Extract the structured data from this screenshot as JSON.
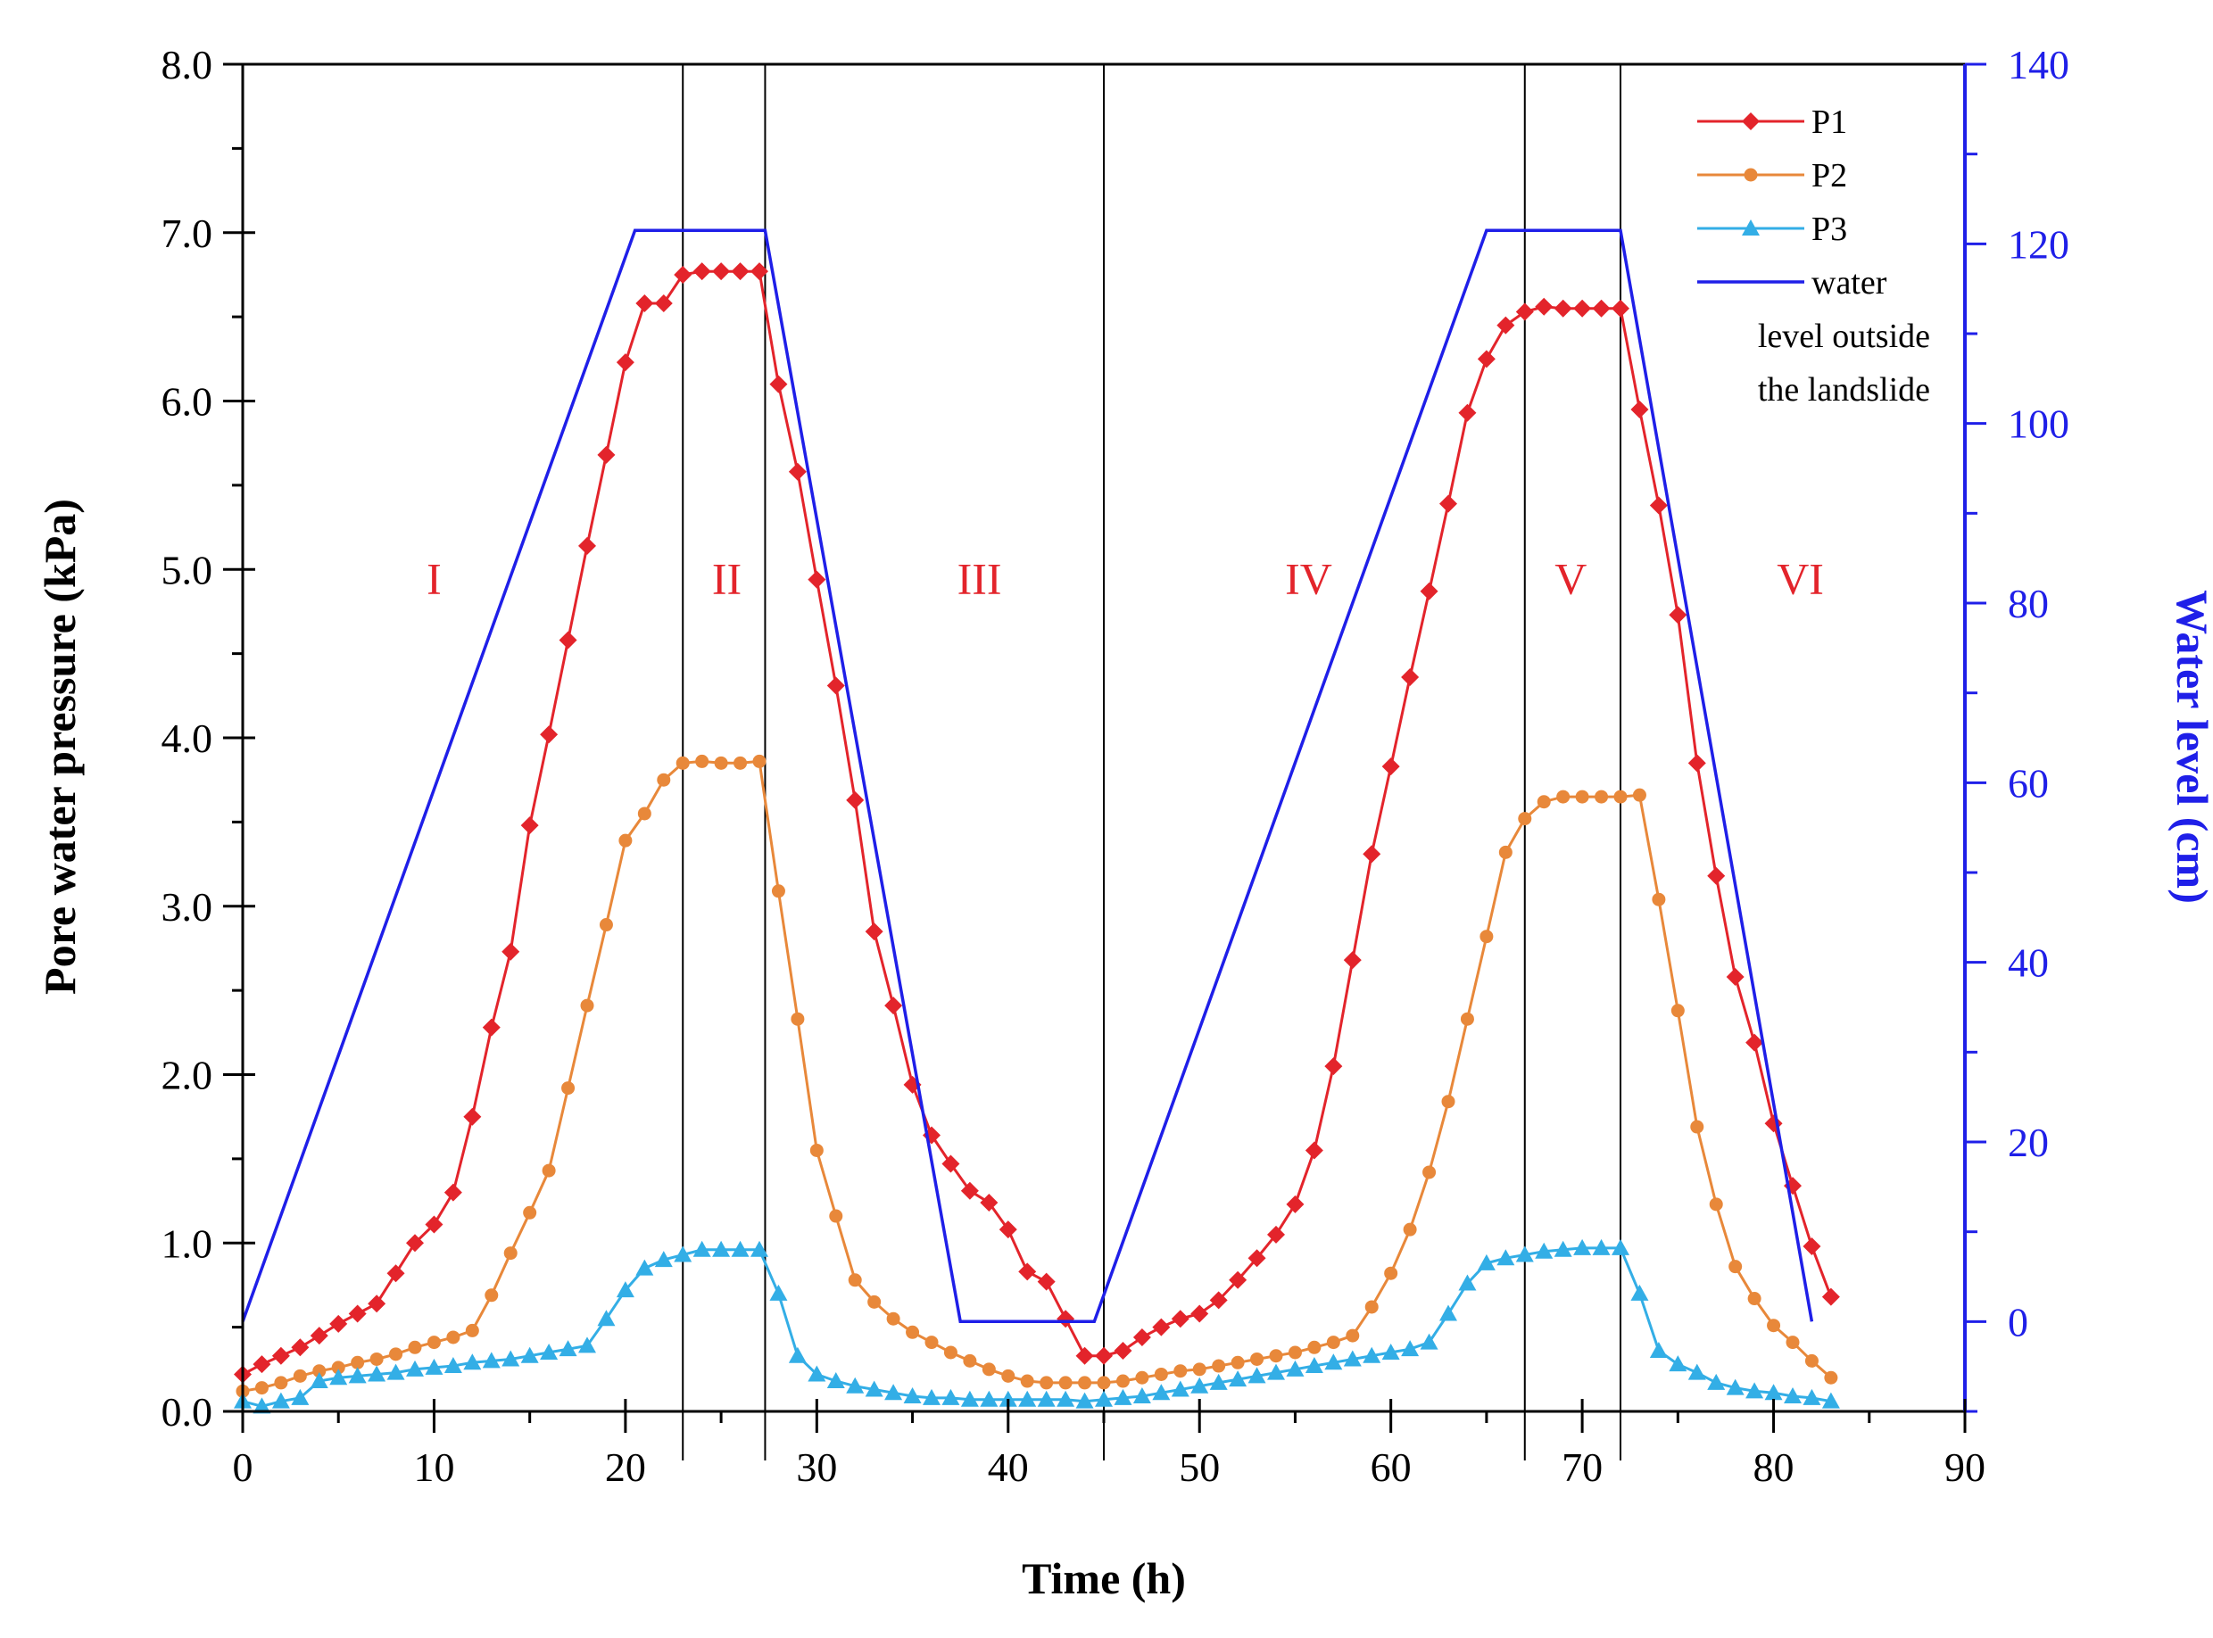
{
  "chart_data": {
    "type": "line",
    "title": "",
    "xlabel": "Time (h)",
    "ylabel": "Pore water pressure (kPa)",
    "y2label": "Water level (cm)",
    "xlim": [
      0,
      90
    ],
    "ylim": [
      0,
      8
    ],
    "y2lim": [
      -10,
      140
    ],
    "x_ticks": [
      "0",
      "10",
      "20",
      "30",
      "40",
      "50",
      "60",
      "70",
      "80",
      "90"
    ],
    "y_ticks": [
      "0.0",
      "1.0",
      "2.0",
      "3.0",
      "4.0",
      "5.0",
      "6.0",
      "7.0",
      "8.0"
    ],
    "y2_ticks": [
      "0",
      "20",
      "40",
      "60",
      "80",
      "100",
      "120",
      "140"
    ],
    "grid": false,
    "legend_position": "top-right",
    "stage_boundaries": [
      23,
      27.3,
      45,
      67,
      72
    ],
    "stages": [
      {
        "label": "I",
        "x": 10,
        "y": 4.95
      },
      {
        "label": "II",
        "x": 25.3,
        "y": 4.95
      },
      {
        "label": "III",
        "x": 38.5,
        "y": 4.95
      },
      {
        "label": "IV",
        "x": 55.7,
        "y": 4.95
      },
      {
        "label": "V",
        "x": 69.4,
        "y": 4.95
      },
      {
        "label": "VI",
        "x": 81.4,
        "y": 4.95
      }
    ],
    "colors": {
      "P1": "#e3242b",
      "P2": "#e8883a",
      "P3": "#33aee6",
      "water": "#1f1fe8",
      "stage_label": "#e3242b",
      "right_axis": "#1f1fe8"
    },
    "series": [
      {
        "name": "P1",
        "axis": "left",
        "marker": "diamond",
        "x": [
          0,
          1,
          2,
          3,
          4,
          5,
          6,
          7,
          8,
          9,
          10,
          11,
          12,
          13,
          14,
          15,
          16,
          17,
          18,
          19,
          20,
          21,
          22,
          23,
          24,
          25,
          26,
          27,
          28,
          29,
          30,
          31,
          32,
          33,
          34,
          35,
          36,
          37,
          38,
          39,
          40,
          41,
          42,
          43,
          44,
          45,
          46,
          47,
          48,
          49,
          50,
          51,
          52,
          53,
          54,
          55,
          56,
          57,
          58,
          59,
          60,
          61,
          62,
          63,
          64,
          65,
          66,
          67,
          68,
          69,
          70,
          71,
          72,
          73,
          74,
          75,
          76,
          77,
          78,
          79,
          80,
          81,
          82,
          83
        ],
        "values": [
          0.22,
          0.28,
          0.33,
          0.38,
          0.45,
          0.52,
          0.58,
          0.64,
          0.82,
          1.0,
          1.11,
          1.3,
          1.75,
          2.28,
          2.73,
          3.48,
          4.02,
          4.58,
          5.14,
          5.68,
          6.23,
          6.58,
          6.58,
          6.75,
          6.77,
          6.77,
          6.77,
          6.77,
          6.1,
          5.58,
          4.94,
          4.31,
          3.63,
          2.85,
          2.41,
          1.94,
          1.64,
          1.47,
          1.31,
          1.24,
          1.08,
          0.83,
          0.77,
          0.55,
          0.33,
          0.33,
          0.36,
          0.44,
          0.5,
          0.55,
          0.58,
          0.66,
          0.78,
          0.91,
          1.05,
          1.23,
          1.55,
          2.05,
          2.68,
          3.31,
          3.83,
          4.36,
          4.87,
          5.39,
          5.93,
          6.25,
          6.45,
          6.53,
          6.56,
          6.55,
          6.55,
          6.55,
          6.55,
          5.95,
          5.38,
          4.73,
          3.85,
          3.18,
          2.58,
          2.19,
          1.71,
          1.34,
          0.98,
          0.68
        ]
      },
      {
        "name": "P2",
        "axis": "left",
        "marker": "circle",
        "x": [
          0,
          1,
          2,
          3,
          4,
          5,
          6,
          7,
          8,
          9,
          10,
          11,
          12,
          13,
          14,
          15,
          16,
          17,
          18,
          19,
          20,
          21,
          22,
          23,
          24,
          25,
          26,
          27,
          28,
          29,
          30,
          31,
          32,
          33,
          34,
          35,
          36,
          37,
          38,
          39,
          40,
          41,
          42,
          43,
          44,
          45,
          46,
          47,
          48,
          49,
          50,
          51,
          52,
          53,
          54,
          55,
          56,
          57,
          58,
          59,
          60,
          61,
          62,
          63,
          64,
          65,
          66,
          67,
          68,
          69,
          70,
          71,
          72,
          73,
          74,
          75,
          76,
          77,
          78,
          79,
          80,
          81,
          82,
          83
        ],
        "values": [
          0.12,
          0.14,
          0.17,
          0.21,
          0.24,
          0.26,
          0.29,
          0.31,
          0.34,
          0.38,
          0.41,
          0.44,
          0.48,
          0.69,
          0.94,
          1.18,
          1.43,
          1.92,
          2.41,
          2.89,
          3.39,
          3.55,
          3.75,
          3.85,
          3.86,
          3.85,
          3.85,
          3.86,
          3.09,
          2.33,
          1.55,
          1.16,
          0.78,
          0.65,
          0.55,
          0.47,
          0.41,
          0.35,
          0.3,
          0.25,
          0.21,
          0.18,
          0.17,
          0.17,
          0.17,
          0.17,
          0.18,
          0.2,
          0.22,
          0.24,
          0.25,
          0.27,
          0.29,
          0.31,
          0.33,
          0.35,
          0.38,
          0.41,
          0.45,
          0.62,
          0.82,
          1.08,
          1.42,
          1.84,
          2.33,
          2.82,
          3.32,
          3.52,
          3.62,
          3.65,
          3.65,
          3.65,
          3.65,
          3.66,
          3.04,
          2.38,
          1.69,
          1.23,
          0.86,
          0.67,
          0.51,
          0.41,
          0.3,
          0.2
        ]
      },
      {
        "name": "P3",
        "axis": "left",
        "marker": "triangle",
        "x": [
          0,
          1,
          2,
          3,
          4,
          5,
          6,
          7,
          8,
          9,
          10,
          11,
          12,
          13,
          14,
          15,
          16,
          17,
          18,
          19,
          20,
          21,
          22,
          23,
          24,
          25,
          26,
          27,
          28,
          29,
          30,
          31,
          32,
          33,
          34,
          35,
          36,
          37,
          38,
          39,
          40,
          41,
          42,
          43,
          44,
          45,
          46,
          47,
          48,
          49,
          50,
          51,
          52,
          53,
          54,
          55,
          56,
          57,
          58,
          59,
          60,
          61,
          62,
          63,
          64,
          65,
          66,
          67,
          68,
          69,
          70,
          71,
          72,
          73,
          74,
          75,
          76,
          77,
          78,
          79,
          80,
          81,
          82,
          83
        ],
        "values": [
          0.06,
          0.03,
          0.06,
          0.08,
          0.18,
          0.2,
          0.21,
          0.22,
          0.23,
          0.25,
          0.26,
          0.27,
          0.29,
          0.3,
          0.31,
          0.33,
          0.35,
          0.37,
          0.39,
          0.55,
          0.72,
          0.85,
          0.9,
          0.93,
          0.96,
          0.96,
          0.96,
          0.96,
          0.7,
          0.33,
          0.22,
          0.18,
          0.15,
          0.13,
          0.11,
          0.09,
          0.08,
          0.08,
          0.07,
          0.07,
          0.07,
          0.07,
          0.07,
          0.07,
          0.06,
          0.07,
          0.08,
          0.09,
          0.11,
          0.13,
          0.15,
          0.17,
          0.19,
          0.21,
          0.23,
          0.25,
          0.27,
          0.29,
          0.31,
          0.33,
          0.35,
          0.37,
          0.41,
          0.58,
          0.76,
          0.88,
          0.91,
          0.93,
          0.95,
          0.96,
          0.97,
          0.97,
          0.97,
          0.7,
          0.36,
          0.28,
          0.23,
          0.17,
          0.14,
          0.12,
          0.11,
          0.09,
          0.08,
          0.06
        ]
      },
      {
        "name": "water level outside the landslide",
        "axis": "right",
        "marker": "none",
        "x": [
          0,
          20.5,
          27.3,
          37.5,
          44.5,
          65,
          72,
          82
        ],
        "values": [
          0,
          121.5,
          121.5,
          0,
          0,
          121.5,
          121.5,
          0
        ]
      }
    ],
    "legend": [
      {
        "label": "P1",
        "series": "P1"
      },
      {
        "label": "P2",
        "series": "P2"
      },
      {
        "label": "P3",
        "series": "P3"
      },
      {
        "label": "water",
        "series": "water level outside the landslide"
      },
      {
        "label": "level outside",
        "series": "water level outside the landslide"
      },
      {
        "label": "the landslide",
        "series": "water level outside the landslide"
      }
    ]
  }
}
